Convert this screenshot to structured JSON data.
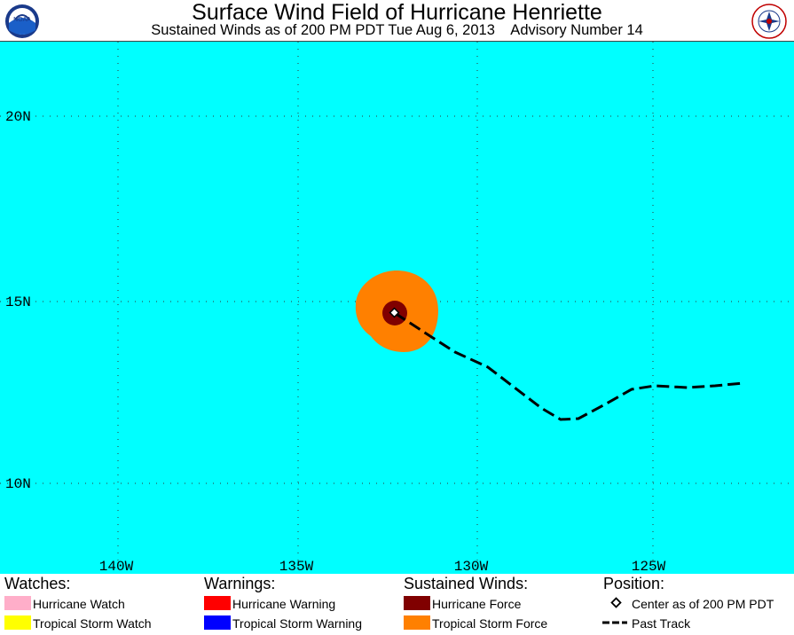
{
  "header": {
    "title": "Surface Wind Field of Hurricane Henriette",
    "subtitle": "Sustained Winds as of 200 PM PDT Tue Aug 6, 2013    Advisory Number 14"
  },
  "map": {
    "ocean_color": "#00ffff",
    "lat_labels": [
      "20N",
      "15N",
      "10N"
    ],
    "lon_labels": [
      "140W",
      "135W",
      "130W",
      "125W"
    ],
    "colors": {
      "tropical_storm_force": "#ff8000",
      "hurricane_force": "#800000",
      "track": "#000000"
    }
  },
  "legend": {
    "watches": {
      "title": "Watches:",
      "items": [
        {
          "label": "Hurricane Watch",
          "color": "#ffaec9"
        },
        {
          "label": "Tropical Storm Watch",
          "color": "#ffff00"
        }
      ]
    },
    "warnings": {
      "title": "Warnings:",
      "items": [
        {
          "label": "Hurricane Warning",
          "color": "#ff0000"
        },
        {
          "label": "Tropical Storm Warning",
          "color": "#0000ff"
        }
      ]
    },
    "winds": {
      "title": "Sustained Winds:",
      "items": [
        {
          "label": "Hurricane Force",
          "color": "#800000"
        },
        {
          "label": "Tropical Storm Force",
          "color": "#ff8000"
        }
      ]
    },
    "position": {
      "title": "Position:",
      "center_label": "Center as of 200 PM PDT",
      "track_label": "Past Track"
    }
  }
}
